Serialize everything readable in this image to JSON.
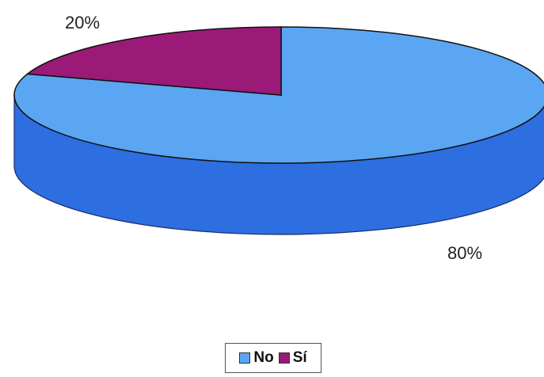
{
  "chart_data": {
    "type": "pie",
    "style": "3d",
    "categories": [
      "No",
      "Sí"
    ],
    "values": [
      80,
      20
    ],
    "data_labels": [
      "80%",
      "20%"
    ],
    "colors": [
      "#5aa6f2",
      "#9b1a78"
    ],
    "side_colors": [
      "#2d6ee0",
      "#7a1160"
    ],
    "title": "",
    "legend_position": "bottom"
  }
}
